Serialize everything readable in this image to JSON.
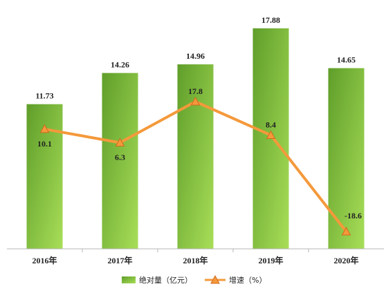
{
  "chart_data": {
    "type": "bar",
    "categories": [
      "2016年",
      "2017年",
      "2018年",
      "2019年",
      "2020年"
    ],
    "series": [
      {
        "name": "绝对量（亿元）",
        "type": "bar",
        "values": [
          11.73,
          14.26,
          14.96,
          17.88,
          14.65
        ],
        "labels": [
          "11.73",
          "14.26",
          "14.96",
          "17.88",
          "14.65"
        ]
      },
      {
        "name": "增速（%）",
        "type": "line",
        "values": [
          10.1,
          6.3,
          17.8,
          8.4,
          -18.6
        ],
        "labels": [
          "10.1",
          "6.3",
          "17.8",
          "8.4",
          "-18.6"
        ]
      }
    ],
    "legend_position": "bottom",
    "grid": false,
    "colors": {
      "bar_top": "#6aa82e",
      "bar_bottom": "#a6dc55",
      "line": "#f4993b",
      "marker_fill": "#f4993b",
      "marker_stroke": "#d2691e",
      "axis": "#b5b5b5"
    }
  }
}
